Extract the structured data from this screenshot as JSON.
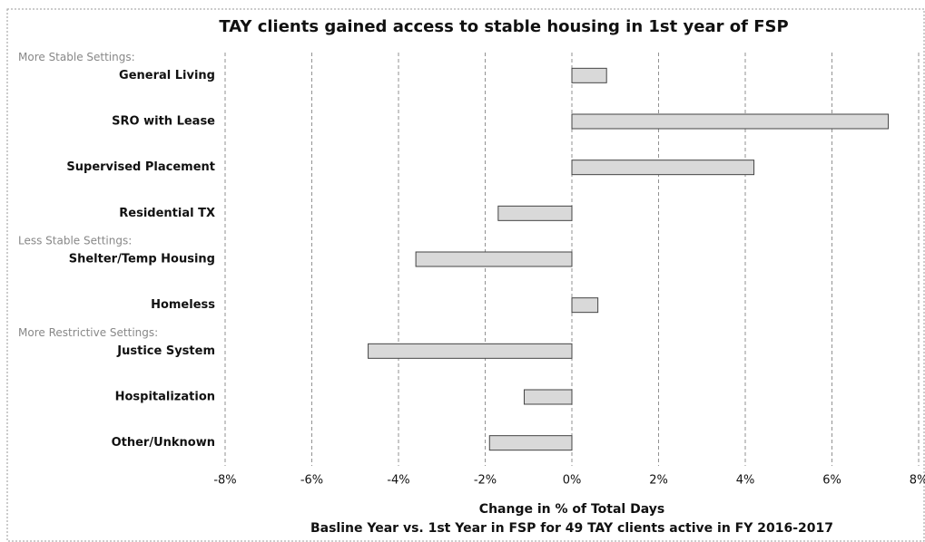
{
  "chart_data": {
    "type": "barh",
    "title": "TAY clients gained access to stable housing in 1st year of FSP",
    "categories": [
      "General Living",
      "SRO with Lease",
      "Supervised Placement",
      "Residential TX",
      "Shelter/Temp Housing",
      "Homeless",
      "Justice System",
      "Hospitalization",
      "Other/Unknown"
    ],
    "values": [
      0.8,
      7.3,
      4.2,
      -1.7,
      -3.6,
      0.6,
      -4.7,
      -1.1,
      -1.9
    ],
    "color": "#d9d9d9",
    "annotations": [
      "More Stable Settings:",
      "Less Stable Settings:",
      "More Restrictive Settings:"
    ],
    "xlim": [
      -8,
      8
    ],
    "xticks": [
      {
        "value": -8,
        "label": "-8%"
      },
      {
        "value": -6,
        "label": "-6%"
      },
      {
        "value": -4,
        "label": "-4%"
      },
      {
        "value": -2,
        "label": "-2%"
      },
      {
        "value": 0,
        "label": "0%"
      },
      {
        "value": 2,
        "label": "2%"
      },
      {
        "value": 4,
        "label": "4%"
      },
      {
        "value": 6,
        "label": "6%"
      },
      {
        "value": 8,
        "label": "8%"
      }
    ],
    "grid": true,
    "xlabel": "Change in % of Total Days",
    "subtitle": "Basline Year vs. 1st Year in FSP for 49 TAY clients active in FY 2016-2017"
  }
}
